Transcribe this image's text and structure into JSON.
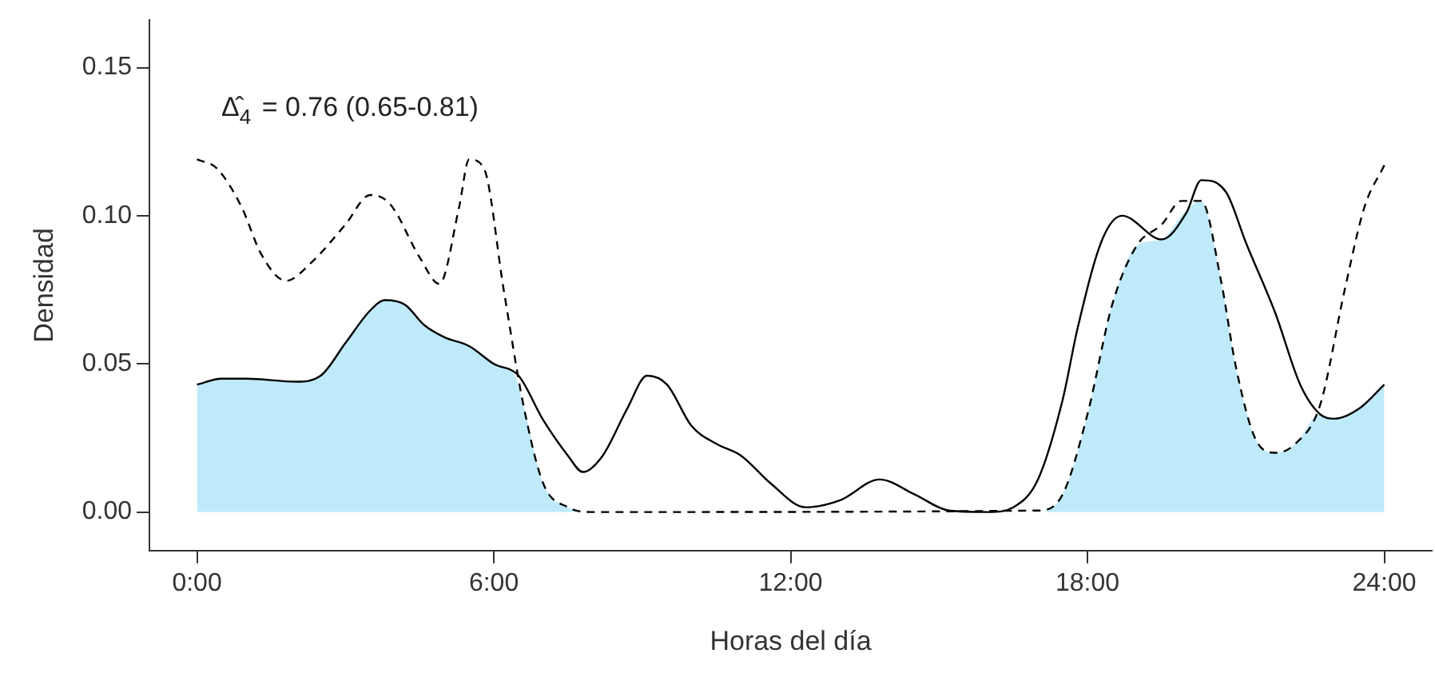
{
  "chart_data": {
    "type": "line",
    "xlabel": "Horas del día",
    "ylabel": "Densidad",
    "annotations": [
      "Δ̂$_{4}$ = 0.76 (0.65-0.81)"
    ],
    "xlim": [
      -0.96,
      24.96
    ],
    "ylim": [
      -0.013,
      0.166
    ],
    "xticks": [
      {
        "value": 0,
        "label": "0:00"
      },
      {
        "value": 6,
        "label": "6:00"
      },
      {
        "value": 12,
        "label": "12:00"
      },
      {
        "value": 18,
        "label": "18:00"
      },
      {
        "value": 24,
        "label": "24:00"
      }
    ],
    "yticks": [
      {
        "value": 0,
        "label": "0.00"
      },
      {
        "value": 0.05,
        "label": "0.05"
      },
      {
        "value": 0.1,
        "label": "0.10"
      },
      {
        "value": 0.15,
        "label": "0.15"
      }
    ],
    "grid": false,
    "legend": false,
    "marker": "none",
    "series": [
      {
        "type": "area",
        "color": "#bfeafa",
        "x": [
          0,
          0.5,
          1,
          2,
          2.5,
          3,
          3.5,
          3.8,
          4.2,
          4.6,
          5,
          5.5,
          6,
          6.4,
          6.6,
          7,
          7.5,
          8,
          17,
          17.5,
          18,
          18.5,
          19,
          19.5,
          19.9,
          20.3,
          20.7,
          21,
          21.4,
          21.8,
          22.2,
          22.7,
          23,
          23.5,
          24
        ],
        "values": [
          0.043,
          0.045,
          0.045,
          0.044,
          0.046,
          0.057,
          0.068,
          0.0715,
          0.07,
          0.063,
          0.059,
          0.056,
          0.05,
          0.047,
          0.036,
          0.0096,
          0.0016,
          0,
          0,
          0.006,
          0.033,
          0.07,
          0.09,
          0.092,
          0.1,
          0.105,
          0.078,
          0.049,
          0.0245,
          0.02,
          0.023,
          0.033,
          0.0315,
          0.035,
          0.043
        ]
      },
      {
        "type": "line",
        "color": "#000000",
        "line_style": "solid",
        "x": [
          0,
          0.5,
          1,
          2,
          2.5,
          3,
          3.5,
          3.8,
          4.2,
          4.6,
          5,
          5.5,
          6,
          6.5,
          7,
          7.5,
          7.8,
          8.2,
          8.7,
          9.1,
          9.5,
          10,
          10.5,
          11,
          11.6,
          12.3,
          13,
          13.8,
          14.5,
          15.2,
          16,
          16.5,
          17,
          17.5,
          17.8,
          18.3,
          18.7,
          19.5,
          20,
          20.3,
          20.8,
          21.2,
          21.8,
          22.3,
          22.7,
          23,
          23.5,
          24
        ],
        "values": [
          0.043,
          0.045,
          0.045,
          0.044,
          0.046,
          0.057,
          0.068,
          0.0715,
          0.07,
          0.063,
          0.059,
          0.056,
          0.05,
          0.046,
          0.031,
          0.019,
          0.0135,
          0.019,
          0.035,
          0.046,
          0.043,
          0.029,
          0.023,
          0.019,
          0.0096,
          0.0016,
          0.004,
          0.011,
          0.006,
          0.0005,
          0,
          0.0016,
          0.011,
          0.038,
          0.062,
          0.092,
          0.1,
          0.092,
          0.101,
          0.112,
          0.108,
          0.091,
          0.067,
          0.043,
          0.033,
          0.0315,
          0.035,
          0.043
        ]
      },
      {
        "type": "line",
        "color": "#000000",
        "line_style": "dashed",
        "x": [
          0,
          0.4,
          0.9,
          1.3,
          1.8,
          2.3,
          3,
          3.5,
          3.9,
          4.5,
          4.9,
          5.3,
          5.5,
          5.8,
          6.2,
          6.6,
          7,
          7.5,
          8,
          17,
          17.5,
          18,
          18.5,
          19,
          19.5,
          19.9,
          20.3,
          20.7,
          21,
          21.4,
          21.8,
          22.2,
          22.7,
          23.2,
          23.6,
          24
        ],
        "values": [
          0.119,
          0.116,
          0.103,
          0.087,
          0.078,
          0.084,
          0.097,
          0.107,
          0.104,
          0.086,
          0.077,
          0.103,
          0.119,
          0.116,
          0.075,
          0.036,
          0.0096,
          0.0016,
          0,
          0.0005,
          0.006,
          0.033,
          0.07,
          0.09,
          0.097,
          0.105,
          0.105,
          0.078,
          0.049,
          0.0245,
          0.02,
          0.023,
          0.036,
          0.075,
          0.103,
          0.117
        ]
      }
    ]
  }
}
